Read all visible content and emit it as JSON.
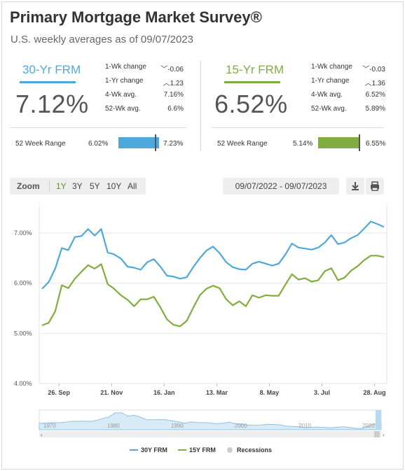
{
  "header": {
    "title": "Primary Mortgage Market Survey®",
    "subtitle": "U.S. weekly averages as of 09/07/2023"
  },
  "colors": {
    "frm30": "#4fa8dc",
    "frm15": "#7fad3f",
    "recession": "#cccccc"
  },
  "frm30": {
    "name": "30-Yr FRM",
    "rate": "7.12%",
    "stats": [
      {
        "label": "1-Wk change",
        "icon": "chevron-down-icon",
        "value": "-0.06"
      },
      {
        "label": "1-Yr change",
        "icon": "chevron-up-icon",
        "value": "1.23"
      },
      {
        "label": "4-Wk avg.",
        "value": "7.16%"
      },
      {
        "label": "52-Wk avg.",
        "value": "6.6%"
      }
    ],
    "range": {
      "label": "52 Week Range",
      "low": "6.02%",
      "high": "7.23%",
      "current_fraction": 0.91
    }
  },
  "frm15": {
    "name": "15-Yr FRM",
    "rate": "6.52%",
    "stats": [
      {
        "label": "1-Wk change",
        "icon": "chevron-down-icon",
        "value": "-0.03"
      },
      {
        "label": "1-Yr change",
        "icon": "chevron-up-icon",
        "value": "1.36"
      },
      {
        "label": "4-Wk avg.",
        "value": "6.52%"
      },
      {
        "label": "52-Wk avg.",
        "value": "5.89%"
      }
    ],
    "range": {
      "label": "52 Week Range",
      "low": "5.14%",
      "high": "6.55%",
      "current_fraction": 0.98
    }
  },
  "toolbar": {
    "zoom_label": "Zoom",
    "zoom_options": [
      "1Y",
      "3Y",
      "5Y",
      "10Y",
      "All"
    ],
    "active_zoom": "1Y",
    "date_range": "09/07/2022 - 09/07/2023",
    "download_icon": "download-icon",
    "print_icon": "print-icon"
  },
  "chart_data": {
    "type": "line",
    "title": "",
    "xlabel": "",
    "ylabel": "",
    "ylim": [
      4.0,
      7.6
    ],
    "y_ticks": [
      "4.00%",
      "5.00%",
      "6.00%",
      "7.00%"
    ],
    "x_ticks": [
      "26. Sep",
      "21. Nov",
      "16. Jan",
      "13. Mar",
      "8. May",
      "3. Jul",
      "28. Aug"
    ],
    "x": [
      "2022-09-08",
      "2022-09-15",
      "2022-09-22",
      "2022-09-29",
      "2022-10-06",
      "2022-10-13",
      "2022-10-20",
      "2022-10-27",
      "2022-11-03",
      "2022-11-10",
      "2022-11-17",
      "2022-11-23",
      "2022-12-01",
      "2022-12-08",
      "2022-12-15",
      "2022-12-22",
      "2022-12-29",
      "2023-01-05",
      "2023-01-12",
      "2023-01-19",
      "2023-01-26",
      "2023-02-02",
      "2023-02-09",
      "2023-02-16",
      "2023-02-23",
      "2023-03-02",
      "2023-03-09",
      "2023-03-16",
      "2023-03-23",
      "2023-03-30",
      "2023-04-06",
      "2023-04-13",
      "2023-04-20",
      "2023-04-27",
      "2023-05-04",
      "2023-05-11",
      "2023-05-18",
      "2023-05-25",
      "2023-06-01",
      "2023-06-08",
      "2023-06-15",
      "2023-06-22",
      "2023-06-29",
      "2023-07-06",
      "2023-07-13",
      "2023-07-20",
      "2023-07-27",
      "2023-08-03",
      "2023-08-10",
      "2023-08-17",
      "2023-08-24",
      "2023-08-31",
      "2023-09-07"
    ],
    "series": [
      {
        "name": "30Y FRM",
        "color": "#4fa8dc",
        "values": [
          5.89,
          6.02,
          6.29,
          6.7,
          6.66,
          6.92,
          6.94,
          7.08,
          6.95,
          7.08,
          6.61,
          6.58,
          6.49,
          6.33,
          6.31,
          6.27,
          6.42,
          6.48,
          6.33,
          6.15,
          6.13,
          6.09,
          6.12,
          6.32,
          6.5,
          6.65,
          6.73,
          6.6,
          6.42,
          6.32,
          6.28,
          6.27,
          6.39,
          6.43,
          6.39,
          6.35,
          6.39,
          6.57,
          6.79,
          6.71,
          6.69,
          6.67,
          6.71,
          6.81,
          6.96,
          6.78,
          6.81,
          6.9,
          6.96,
          7.09,
          7.23,
          7.18,
          7.12
        ]
      },
      {
        "name": "15Y FRM",
        "color": "#7fad3f",
        "values": [
          5.16,
          5.21,
          5.44,
          5.96,
          5.9,
          6.09,
          6.23,
          6.36,
          6.29,
          6.38,
          5.98,
          5.9,
          5.76,
          5.67,
          5.54,
          5.68,
          5.68,
          5.73,
          5.52,
          5.28,
          5.17,
          5.14,
          5.25,
          5.51,
          5.76,
          5.89,
          5.95,
          5.9,
          5.68,
          5.56,
          5.64,
          5.54,
          5.76,
          5.71,
          5.76,
          5.75,
          5.75,
          5.97,
          6.18,
          6.07,
          6.1,
          6.03,
          6.06,
          6.24,
          6.3,
          6.06,
          6.11,
          6.25,
          6.34,
          6.46,
          6.55,
          6.55,
          6.52
        ]
      }
    ],
    "legend": {
      "placement": "bottom",
      "entries": [
        "30Y FRM",
        "15Y FRM",
        "Recessions"
      ]
    },
    "grid": true
  },
  "navigator": {
    "labels": [
      "1970",
      "1980",
      "1990",
      "2000",
      "2010",
      "2020"
    ],
    "values": [
      7.3,
      7.5,
      7.9,
      7.7,
      8.1,
      8.9,
      9.0,
      9.1,
      8.8,
      9.6,
      11.2,
      12.5,
      15.9,
      16.0,
      13.2,
      13.9,
      12.4,
      10.2,
      10.2,
      10.3,
      10.2,
      9.3,
      8.4,
      7.3,
      8.4,
      7.9,
      7.8,
      7.6,
      6.9,
      7.4,
      8.1,
      7.0,
      6.5,
      5.8,
      5.8,
      5.9,
      6.4,
      6.3,
      6.0,
      5.0,
      4.7,
      4.5,
      3.7,
      4.0,
      4.2,
      3.9,
      3.6,
      4.0,
      4.5,
      3.9,
      3.1,
      3.0,
      5.3,
      6.8,
      6.9
    ]
  }
}
